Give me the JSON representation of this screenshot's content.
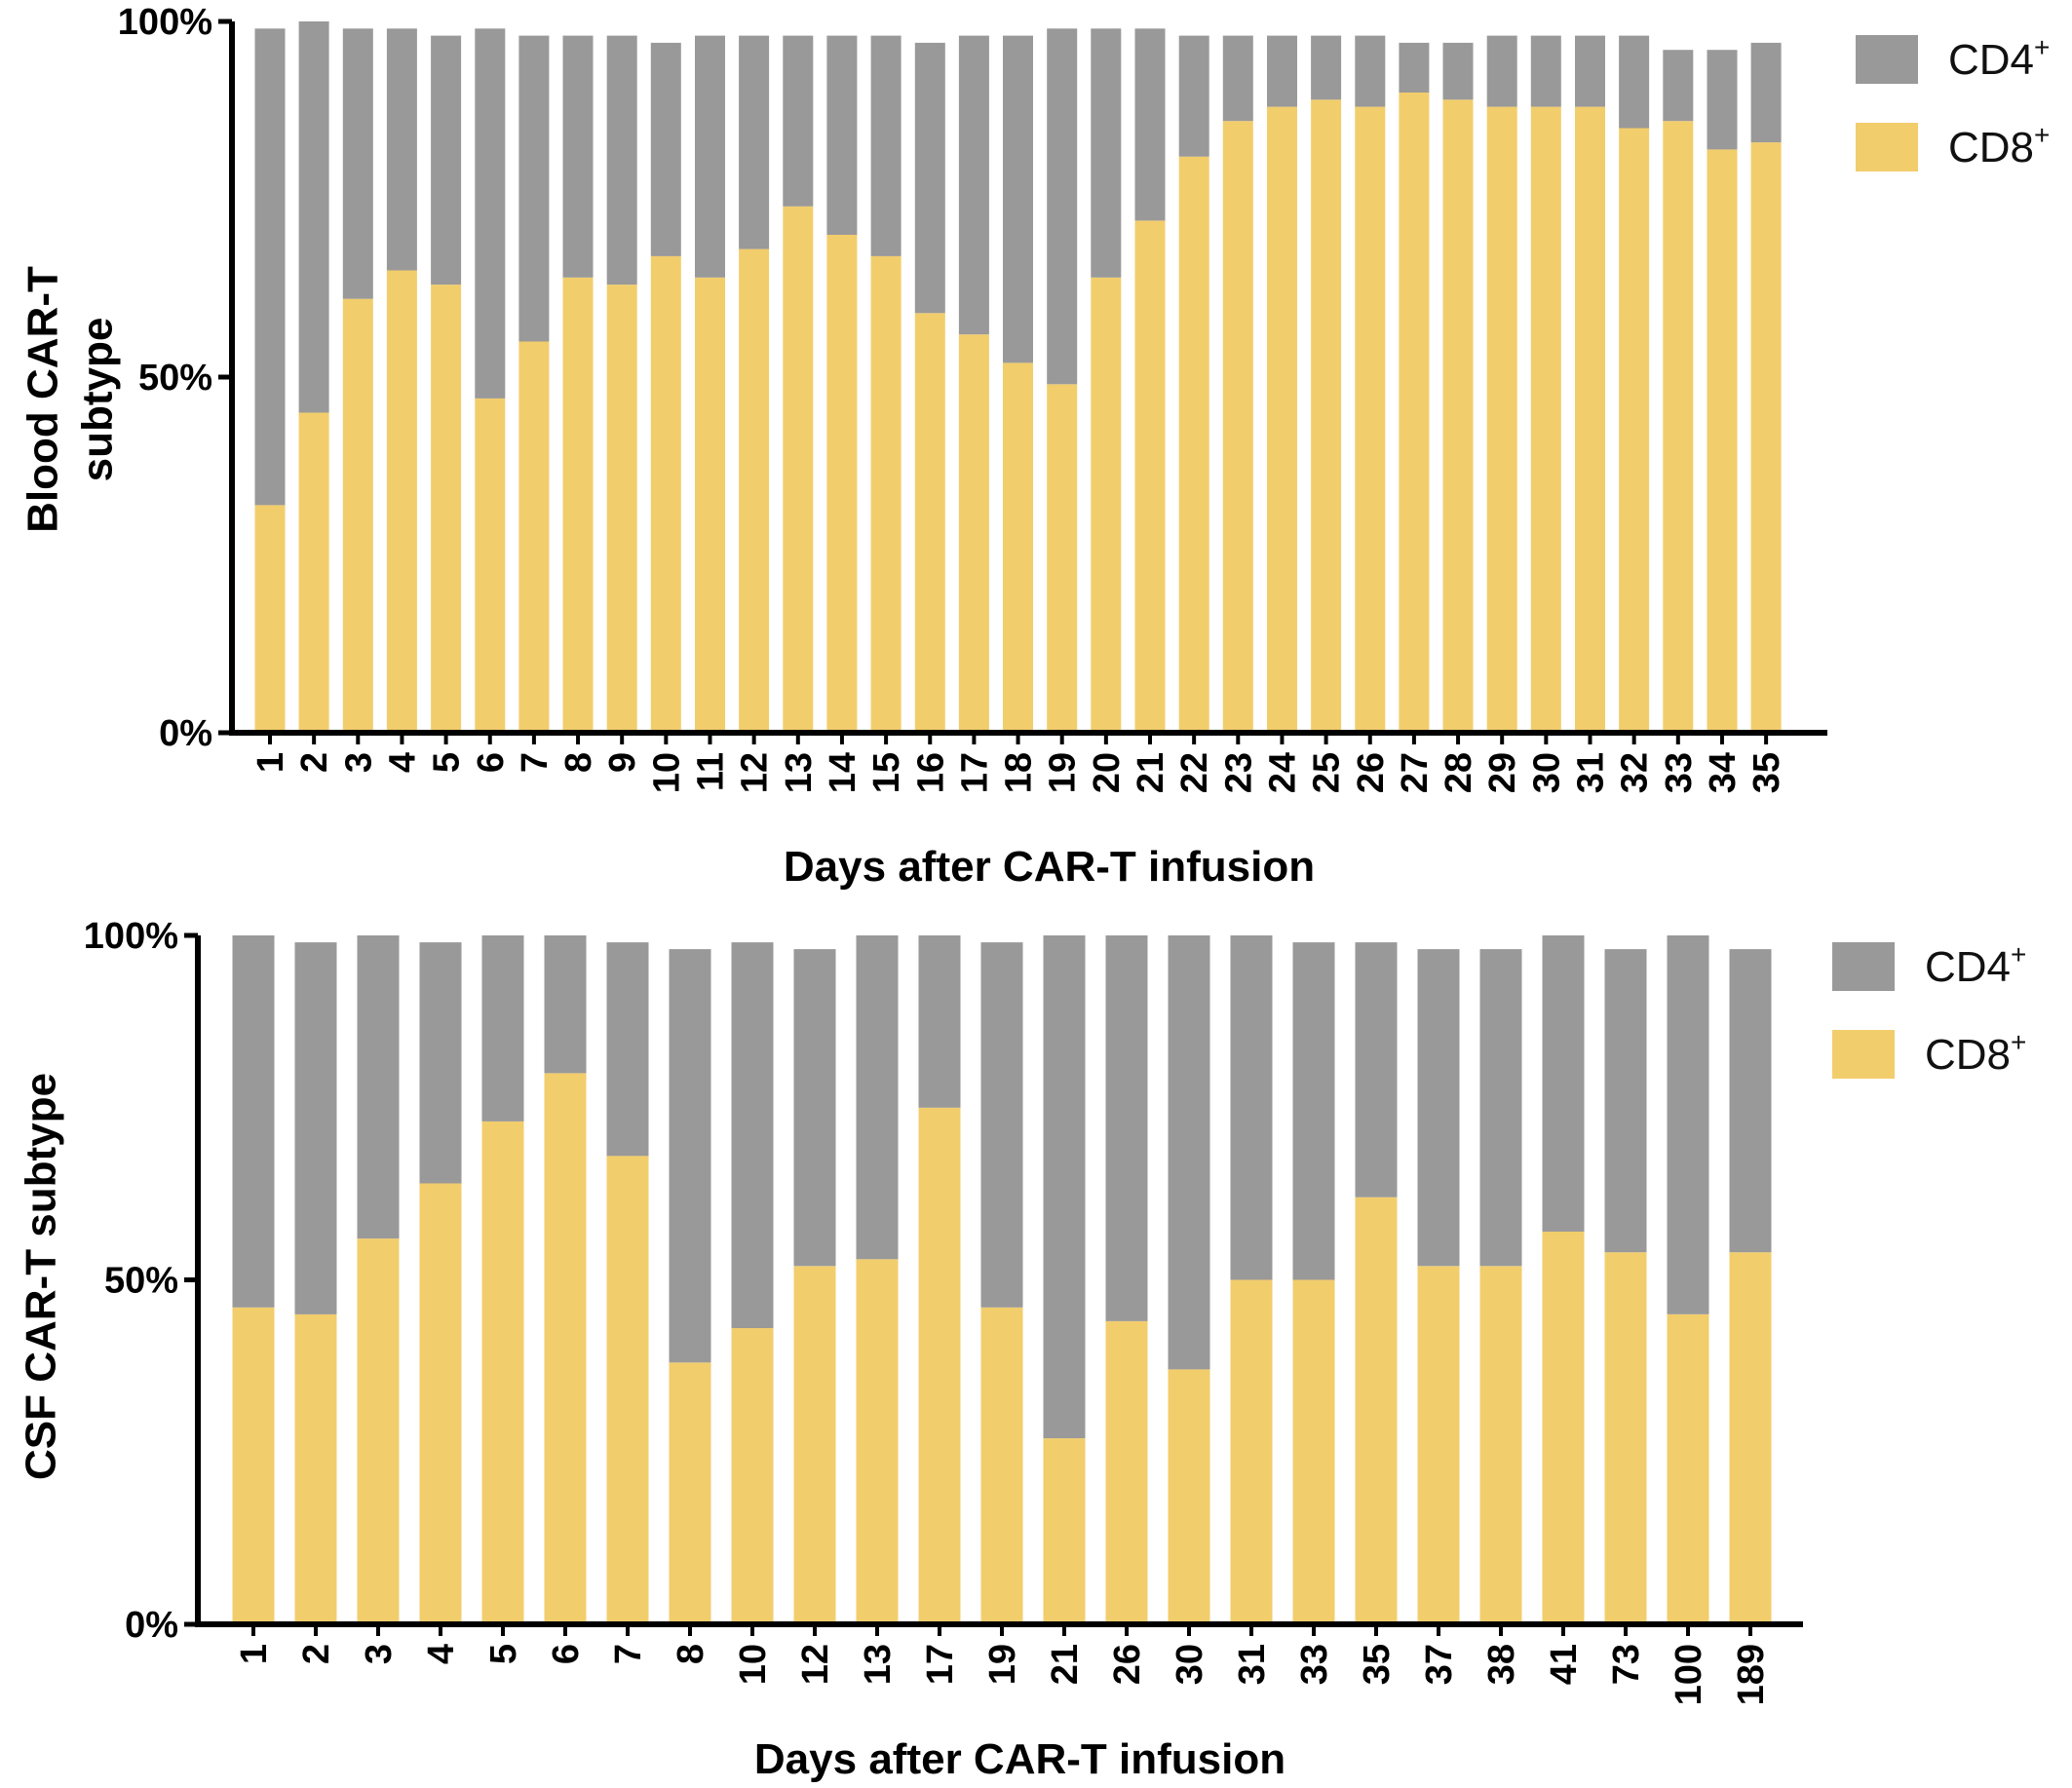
{
  "colors": {
    "cd4": "#999999",
    "cd8": "#F2CD6C",
    "axis": "#000000"
  },
  "chart_data": [
    {
      "type": "bar",
      "stacked": true,
      "title": "",
      "xlabel": "Days after CAR-T infusion",
      "ylabel_lines": [
        "Blood CAR-T",
        "subtype"
      ],
      "ylim": [
        0,
        100
      ],
      "yticks": [
        {
          "value": 0,
          "label": "0%"
        },
        {
          "value": 50,
          "label": "50%"
        },
        {
          "value": 100,
          "label": "100%"
        }
      ],
      "legend_position": "top-right",
      "categories": [
        "1",
        "2",
        "3",
        "4",
        "5",
        "6",
        "7",
        "8",
        "9",
        "10",
        "11",
        "12",
        "13",
        "14",
        "15",
        "16",
        "17",
        "18",
        "19",
        "20",
        "21",
        "22",
        "23",
        "24",
        "25",
        "26",
        "27",
        "28",
        "29",
        "30",
        "31",
        "32",
        "33",
        "34",
        "35"
      ],
      "series": [
        {
          "name": "CD8",
          "superscript": "+",
          "color_key": "cd8",
          "values": [
            32,
            45,
            61,
            65,
            63,
            47,
            55,
            64,
            63,
            67,
            64,
            68,
            74,
            70,
            67,
            59,
            56,
            52,
            49,
            64,
            72,
            81,
            86,
            88,
            89,
            88,
            90,
            89,
            88,
            88,
            88,
            85,
            86,
            82,
            83
          ]
        },
        {
          "name": "CD4",
          "superscript": "+",
          "color_key": "cd4",
          "values": [
            67,
            55,
            38,
            34,
            35,
            52,
            43,
            34,
            35,
            30,
            34,
            30,
            24,
            28,
            31,
            38,
            42,
            46,
            50,
            35,
            27,
            17,
            12,
            10,
            9,
            10,
            7,
            8,
            10,
            10,
            10,
            13,
            10,
            14,
            14
          ]
        }
      ]
    },
    {
      "type": "bar",
      "stacked": true,
      "title": "",
      "xlabel": "Days after CAR-T infusion",
      "ylabel_lines": [
        "CSF CAR-T subtype"
      ],
      "ylim": [
        0,
        100
      ],
      "yticks": [
        {
          "value": 0,
          "label": "0%"
        },
        {
          "value": 50,
          "label": "50%"
        },
        {
          "value": 100,
          "label": "100%"
        }
      ],
      "legend_position": "top-right",
      "categories": [
        "1",
        "2",
        "3",
        "4",
        "5",
        "6",
        "7",
        "8",
        "10",
        "12",
        "13",
        "17",
        "19",
        "21",
        "26",
        "30",
        "31",
        "33",
        "35",
        "37",
        "38",
        "41",
        "73",
        "100",
        "189"
      ],
      "series": [
        {
          "name": "CD8",
          "superscript": "+",
          "color_key": "cd8",
          "values": [
            46,
            45,
            56,
            64,
            73,
            80,
            68,
            38,
            43,
            52,
            53,
            75,
            46,
            27,
            44,
            37,
            50,
            50,
            62,
            52,
            52,
            57,
            54,
            45,
            54
          ]
        },
        {
          "name": "CD4",
          "superscript": "+",
          "color_key": "cd4",
          "values": [
            54,
            54,
            44,
            35,
            27,
            20,
            31,
            60,
            56,
            46,
            47,
            25,
            53,
            73,
            56,
            63,
            50,
            49,
            37,
            46,
            46,
            43,
            44,
            55,
            44
          ]
        }
      ]
    }
  ]
}
